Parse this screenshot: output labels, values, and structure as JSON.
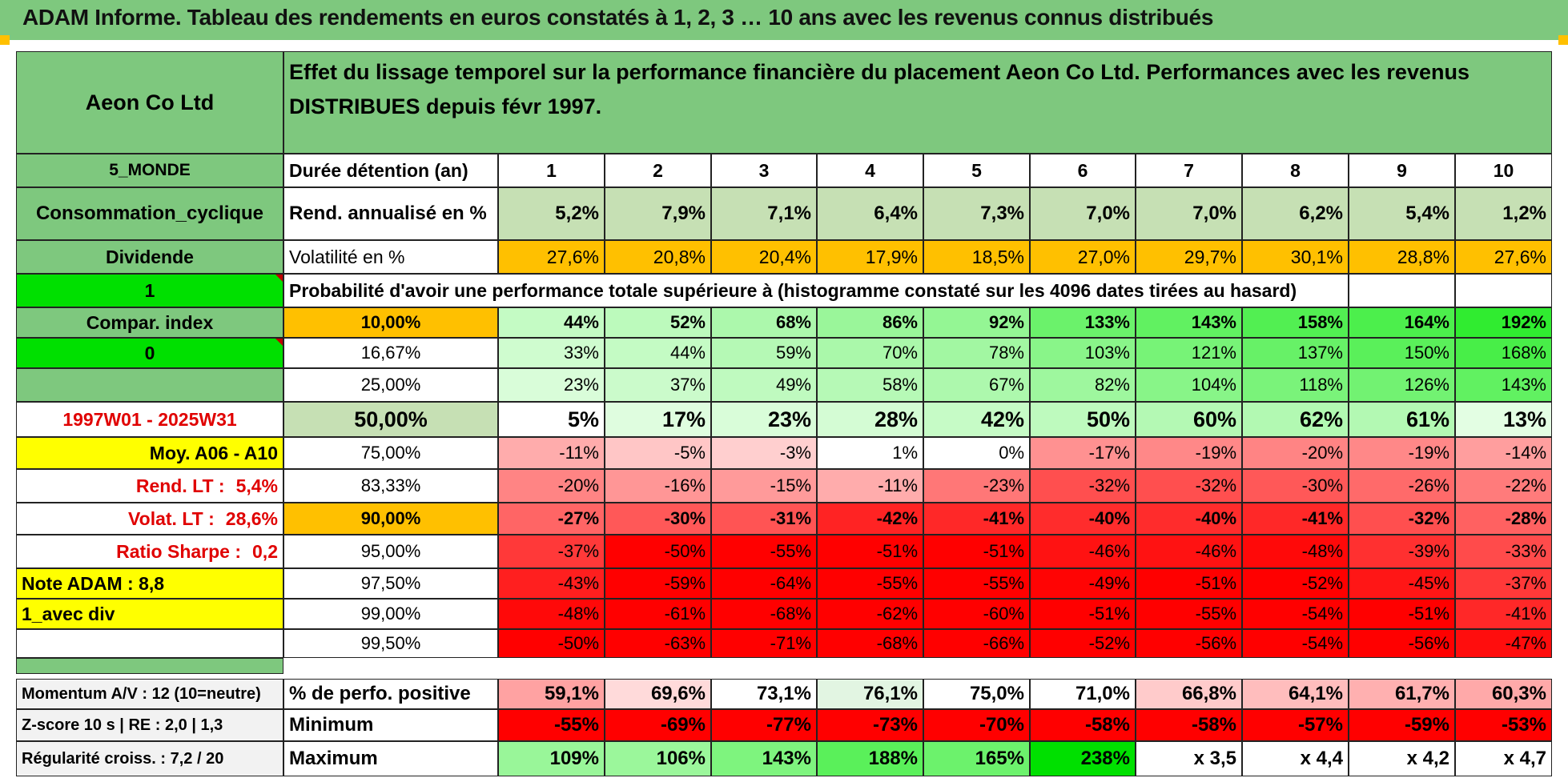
{
  "header": {
    "title": "ADAM Informe. Tableau des rendements en euros constatés à 1, 2, 3 … 10 ans avec les revenus connus distribués"
  },
  "colors": {
    "green": "#7ec87e",
    "bright_green": "#00e000",
    "yellow": "#ffff00",
    "orange": "#ffc000",
    "red": "#ff0000",
    "light_green": "#c6e0b4",
    "dark_red_text": "#e00000"
  },
  "left": {
    "company": "Aeon Co Ltd",
    "region": "5_MONDE",
    "sector": "Consommation_cyclique",
    "dividend": "Dividende",
    "flag1": "1",
    "compar": "Compar. index",
    "flag0": "0",
    "period": "1997W01 - 2025W31",
    "moy": "Moy. A06 - A10",
    "rend_lt_label": "Rend. LT :",
    "rend_lt_value": "5,4%",
    "volat_lt_label": "Volat. LT :",
    "volat_lt_value": "28,6%",
    "sharpe_label": "Ratio Sharpe :",
    "sharpe_value": "0,2",
    "note": "Note ADAM : 8,8",
    "avec_div": "1_avec div"
  },
  "table": {
    "description": "Effet du lissage temporel sur la performance financière du placement Aeon Co Ltd. Performances avec les revenus DISTRIBUES depuis févr 1997.",
    "duration_label": "Durée détention (an)",
    "years": [
      "1",
      "2",
      "3",
      "4",
      "5",
      "6",
      "7",
      "8",
      "9",
      "10"
    ],
    "rend_label": "Rend. annualisé en %",
    "rend": [
      "5,2%",
      "7,9%",
      "7,1%",
      "6,4%",
      "7,3%",
      "7,0%",
      "7,0%",
      "6,2%",
      "5,4%",
      "1,2%"
    ],
    "vol_label": "Volatilité en %",
    "vol": [
      "27,6%",
      "20,8%",
      "20,4%",
      "17,9%",
      "18,5%",
      "27,0%",
      "29,7%",
      "30,1%",
      "28,8%",
      "27,6%"
    ],
    "prob_title": "Probabilité d'avoir une performance totale supérieure à (histogramme constaté sur les 4096 dates tirées au hasard)",
    "prob_rows": [
      {
        "pct": "10,00%",
        "values": [
          "44%",
          "52%",
          "68%",
          "86%",
          "92%",
          "133%",
          "143%",
          "158%",
          "164%",
          "192%"
        ]
      },
      {
        "pct": "16,67%",
        "values": [
          "33%",
          "44%",
          "59%",
          "70%",
          "78%",
          "103%",
          "121%",
          "137%",
          "150%",
          "168%"
        ]
      },
      {
        "pct": "25,00%",
        "values": [
          "23%",
          "37%",
          "49%",
          "58%",
          "67%",
          "82%",
          "104%",
          "118%",
          "126%",
          "143%"
        ]
      },
      {
        "pct": "50,00%",
        "values": [
          "5%",
          "17%",
          "23%",
          "28%",
          "42%",
          "50%",
          "60%",
          "62%",
          "61%",
          "13%"
        ]
      },
      {
        "pct": "75,00%",
        "values": [
          "-11%",
          "-5%",
          "-3%",
          "1%",
          "0%",
          "-17%",
          "-19%",
          "-20%",
          "-19%",
          "-14%"
        ]
      },
      {
        "pct": "83,33%",
        "values": [
          "-20%",
          "-16%",
          "-15%",
          "-11%",
          "-23%",
          "-32%",
          "-32%",
          "-30%",
          "-26%",
          "-22%"
        ]
      },
      {
        "pct": "90,00%",
        "values": [
          "-27%",
          "-30%",
          "-31%",
          "-42%",
          "-41%",
          "-40%",
          "-40%",
          "-41%",
          "-32%",
          "-28%"
        ]
      },
      {
        "pct": "95,00%",
        "values": [
          "-37%",
          "-50%",
          "-55%",
          "-51%",
          "-51%",
          "-46%",
          "-46%",
          "-48%",
          "-39%",
          "-33%"
        ]
      },
      {
        "pct": "97,50%",
        "values": [
          "-43%",
          "-59%",
          "-64%",
          "-55%",
          "-55%",
          "-49%",
          "-51%",
          "-52%",
          "-45%",
          "-37%"
        ]
      },
      {
        "pct": "99,00%",
        "values": [
          "-48%",
          "-61%",
          "-68%",
          "-62%",
          "-60%",
          "-51%",
          "-55%",
          "-54%",
          "-51%",
          "-41%"
        ]
      },
      {
        "pct": "99,50%",
        "values": [
          "-50%",
          "-63%",
          "-71%",
          "-68%",
          "-66%",
          "-52%",
          "-56%",
          "-54%",
          "-56%",
          "-47%"
        ]
      }
    ],
    "bottom": {
      "momentum": "Momentum A/V : 12 (10=neutre)",
      "zscore": "Z-score 10 s | RE : 2,0 | 1,3",
      "regularite": "Régularité croiss. : 7,2 / 20",
      "pos_label": "% de perfo. positive",
      "pos": [
        "59,1%",
        "69,6%",
        "73,1%",
        "76,1%",
        "75,0%",
        "71,0%",
        "66,8%",
        "64,1%",
        "61,7%",
        "60,3%"
      ],
      "min_label": "Minimum",
      "min": [
        "-55%",
        "-69%",
        "-77%",
        "-73%",
        "-70%",
        "-58%",
        "-58%",
        "-57%",
        "-59%",
        "-53%"
      ],
      "max_label": "Maximum",
      "max": [
        "109%",
        "106%",
        "143%",
        "188%",
        "165%",
        "238%",
        "x 3,5",
        "x 4,4",
        "x 4,2",
        "x 4,7"
      ]
    }
  }
}
